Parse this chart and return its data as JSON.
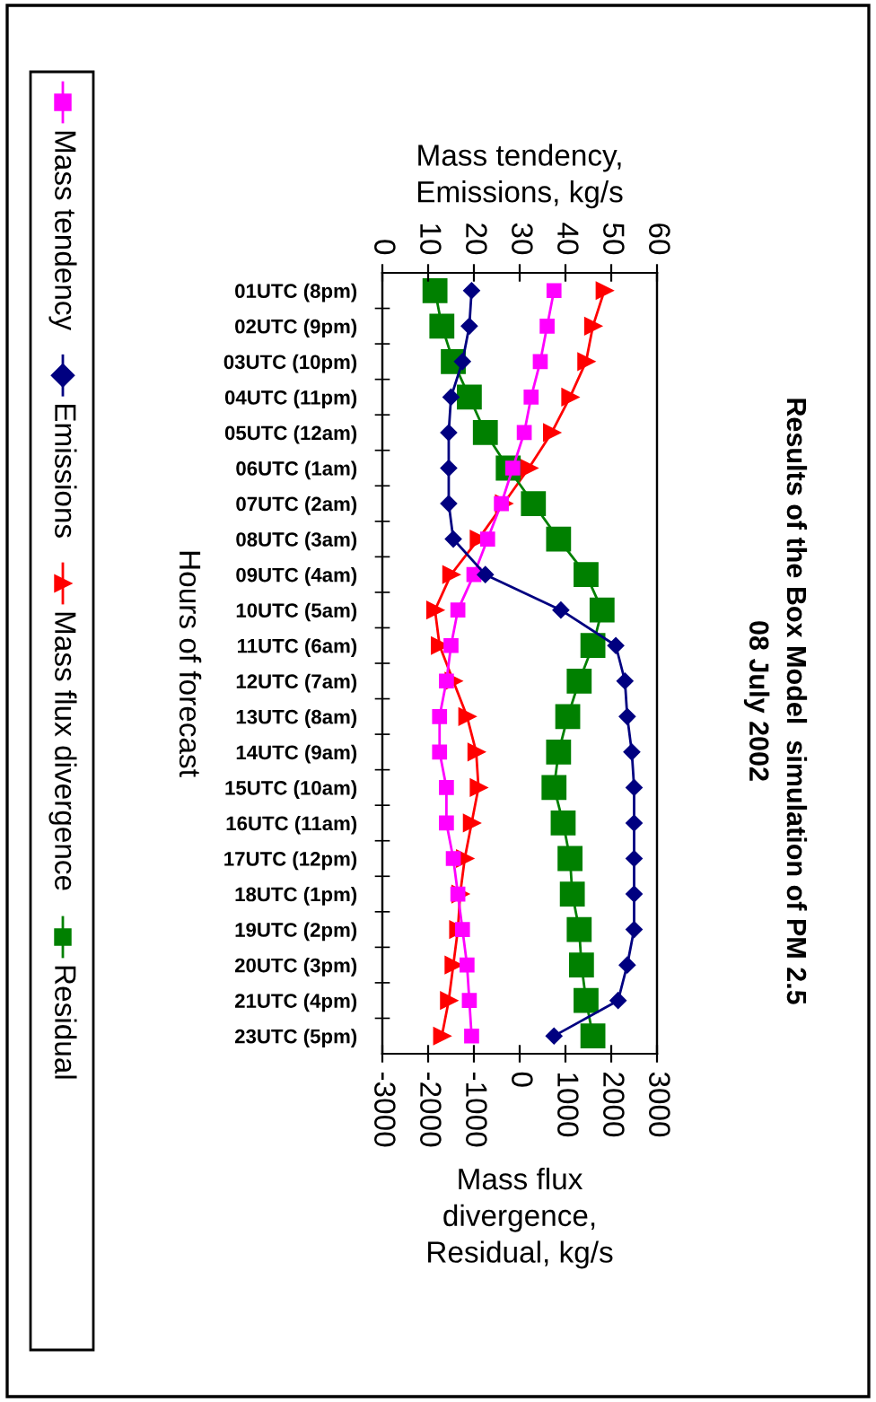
{
  "chart_data": {
    "type": "line",
    "orientation": "horizontal",
    "title": "Results of the Box Model  simulation of PM 2.5\n08 July 2002",
    "ylabel": "Hours of forecast",
    "x2label": "Mass tendency,\nEmissions, kg/s",
    "xlabel": "Mass flux\ndivergence,\nResidual, kg/s",
    "categories": [
      "01UTC (8pm)",
      "02UTC (9pm)",
      "03UTC (10pm)",
      "04UTC (11pm)",
      "05UTC (12am)",
      "06UTC (1am)",
      "07UTC (2am)",
      "08UTC (3am)",
      "09UTC (4am)",
      "10UTC (5am)",
      "11UTC (6am)",
      "12UTC (7am)",
      "13UTC (8am)",
      "14UTC (9am)",
      "15UTC (10am)",
      "16UTC (11am)",
      "17UTC (12pm)",
      "18UTC (1pm)",
      "19UTC (2pm)",
      "20UTC (3pm)",
      "21UTC (4pm)",
      "23UTC (5pm)"
    ],
    "x2lim": [
      0,
      60
    ],
    "x2ticks": [
      0,
      10,
      20,
      30,
      40,
      50,
      60
    ],
    "xlim": [
      -3000,
      3000
    ],
    "xticks": [
      -3000,
      -2000,
      -1000,
      0,
      1000,
      2000,
      3000
    ],
    "grid": false,
    "legend": "left",
    "series": [
      {
        "name": "Mass tendency",
        "color": "#ff00ff",
        "marker": "square",
        "axis": "x2",
        "values": [
          37.5,
          36,
          34.5,
          32.5,
          31,
          28.5,
          26,
          23,
          20,
          16.5,
          15,
          14,
          12.5,
          12.5,
          14,
          14,
          15.5,
          16.5,
          17.5,
          18.5,
          19,
          19.5
        ]
      },
      {
        "name": "Emissions",
        "color": "#000080",
        "marker": "diamond",
        "axis": "x2",
        "values": [
          19.5,
          19,
          17.5,
          15,
          14.5,
          14.5,
          14.5,
          15.5,
          22.5,
          39,
          51,
          53,
          53.5,
          54.5,
          55,
          55,
          55,
          55,
          55,
          53.5,
          51.5,
          37.5
        ]
      },
      {
        "name": "Mass flux divergence",
        "color": "#ff0000",
        "marker": "triangle",
        "values": [
          1850,
          1600,
          1450,
          1100,
          700,
          200,
          -350,
          -900,
          -1500,
          -1850,
          -1750,
          -1450,
          -1150,
          -950,
          -900,
          -1050,
          -1200,
          -1300,
          -1350,
          -1450,
          -1550,
          -1700
        ]
      },
      {
        "name": "Residual",
        "color": "#008000",
        "marker": "square",
        "values": [
          -1850,
          -1700,
          -1450,
          -1100,
          -750,
          -250,
          300,
          850,
          1450,
          1800,
          1600,
          1300,
          1050,
          850,
          750,
          950,
          1100,
          1150,
          1300,
          1350,
          1450,
          1600
        ]
      }
    ]
  }
}
